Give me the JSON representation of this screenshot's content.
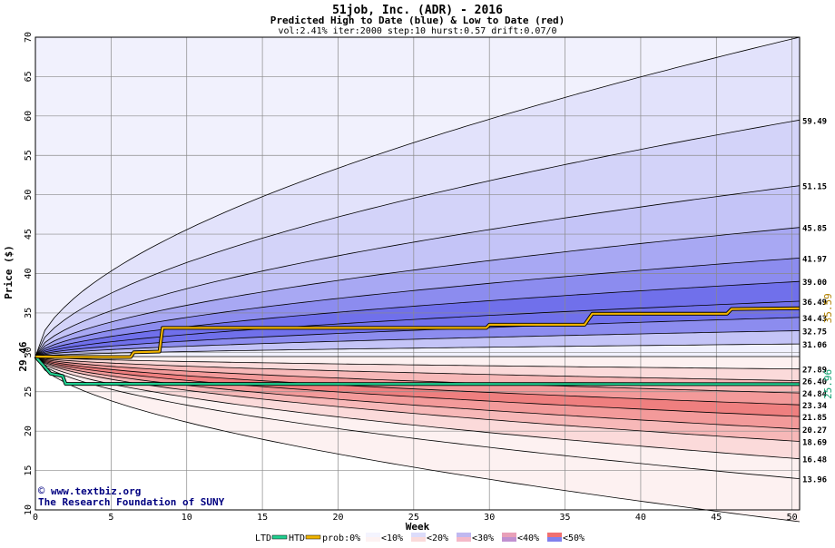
{
  "chart_data": {
    "type": "area",
    "title": "51job, Inc. (ADR) - 2016",
    "subtitle": "Predicted High to Date (blue) &  Low to Date (red)",
    "params": "vol:2.41% iter:2000 step:10 hurst:0.57 drift:0.07/0",
    "xlabel": "Week",
    "ylabel": "Price ($)",
    "xlim": [
      0,
      50.5
    ],
    "ylim": [
      10,
      70
    ],
    "xticks": [
      0,
      5,
      10,
      15,
      20,
      25,
      30,
      35,
      40,
      45,
      50
    ],
    "yticks": [
      10,
      15,
      20,
      25,
      30,
      35,
      40,
      45,
      50,
      55,
      60,
      65,
      70
    ],
    "grid": true,
    "start_price_label": "29.46",
    "htd_end_label": "35.59",
    "ltd_end_label": "25.96",
    "right_labels": [
      "59.49",
      "51.15",
      "45.85",
      "41.97",
      "39.00",
      "36.49",
      "34.43",
      "32.75",
      "31.06",
      "27.89",
      "26.40",
      "24.84",
      "23.34",
      "21.85",
      "20.27",
      "18.69",
      "16.48",
      "13.96"
    ],
    "high_quantiles": [
      {
        "end": 70.0,
        "color": "#f1f1fd",
        "early": true
      },
      {
        "end": 59.49,
        "color": "#e2e2fb"
      },
      {
        "end": 51.15,
        "color": "#d3d3f9"
      },
      {
        "end": 45.85,
        "color": "#c4c4f7"
      },
      {
        "end": 41.97,
        "color": "#a8a8f3"
      },
      {
        "end": 39.0,
        "color": "#8c8cef"
      },
      {
        "end": 36.49,
        "color": "#7070eb"
      },
      {
        "end": 34.43,
        "color": "#7070eb"
      },
      {
        "end": 32.75,
        "color": "#8c8cef"
      },
      {
        "end": 31.06,
        "color": "#c4c4f7"
      },
      {
        "end": 29.46,
        "color": "#f1f1fd"
      }
    ],
    "low_quantiles": [
      {
        "end": 27.89,
        "color": "#fdf1f1"
      },
      {
        "end": 26.4,
        "color": "#fbdada"
      },
      {
        "end": 24.84,
        "color": "#f7b8b8"
      },
      {
        "end": 23.34,
        "color": "#f39a9a"
      },
      {
        "end": 21.85,
        "color": "#ef7f7f"
      },
      {
        "end": 20.27,
        "color": "#f39a9a"
      },
      {
        "end": 18.69,
        "color": "#f7b8b8"
      },
      {
        "end": 16.48,
        "color": "#fbdada"
      },
      {
        "end": 13.96,
        "color": "#fdf1f1"
      },
      {
        "end": 8.5,
        "color": "#fdf1f1",
        "early": true
      }
    ],
    "htd_series": {
      "name": "HTD",
      "color": "#f0b400",
      "x": [
        0,
        2,
        6.3,
        6.5,
        8.2,
        8.4,
        29.8,
        30,
        36.3,
        36.8,
        45.7,
        46,
        50.5
      ],
      "y": [
        29.46,
        29.4,
        29.4,
        30.0,
        30.1,
        33.1,
        33.1,
        33.5,
        33.5,
        34.9,
        34.9,
        35.5,
        35.59
      ]
    },
    "ltd_series": {
      "name": "LTD",
      "color": "#20d090",
      "x": [
        0,
        0.5,
        1,
        1.8,
        2,
        50.5
      ],
      "y": [
        29.46,
        28.4,
        27.3,
        27.0,
        26.0,
        25.96
      ]
    },
    "watermark_line1": "www.textbiz.org",
    "watermark_line2": "The Research Foundation of SUNY",
    "legend": {
      "ltd": "LTD",
      "htd": "HTD",
      "prob_prefix": "prob:0%",
      "items": [
        "<10%",
        "<20%",
        "<30%",
        "<40%",
        "<50%"
      ],
      "item_colors": [
        "#f4f4fe",
        "#dcdcfa",
        "#c0b8f0",
        "#e8a0b8",
        "#f07070"
      ],
      "item_colors2": [
        "#fdf2f2",
        "#fadada",
        "#f4b8c8",
        "#c090d0",
        "#8080ec"
      ]
    },
    "colors": {
      "grid": "#808080",
      "text": "#000000",
      "label_htd": "#b08000",
      "label_ltd": "#10a070",
      "watermark": "#000080"
    }
  }
}
